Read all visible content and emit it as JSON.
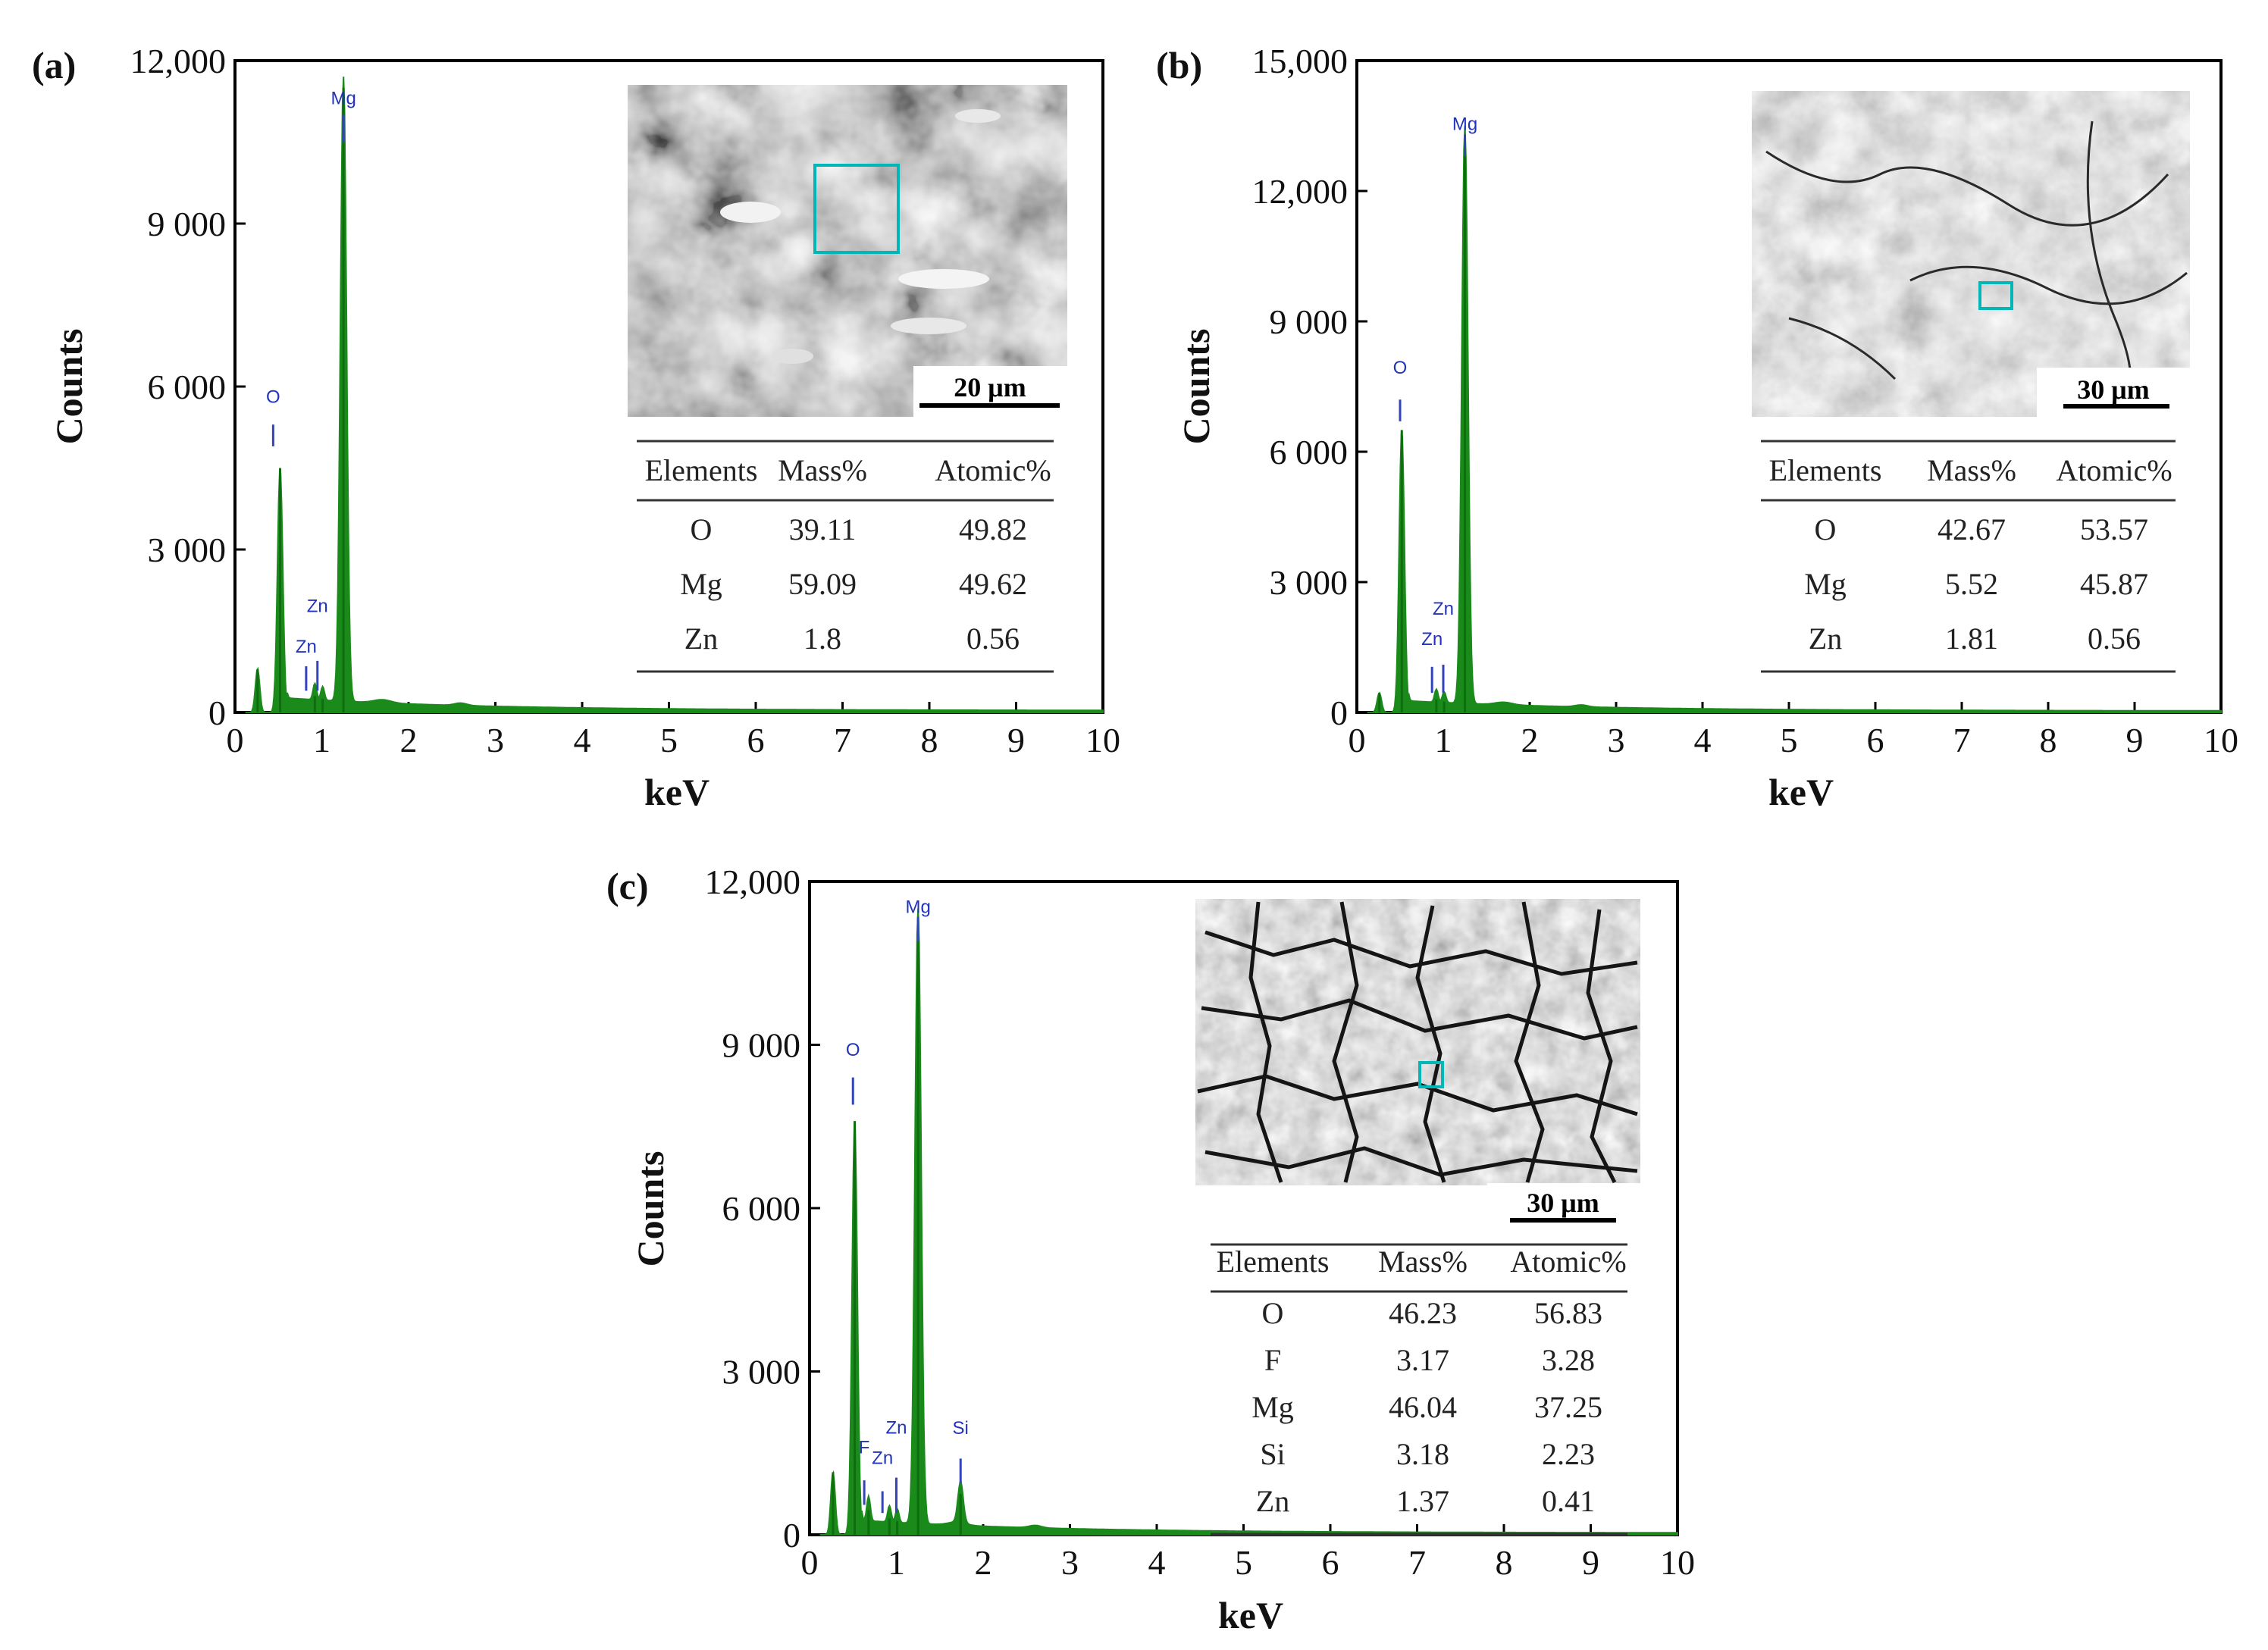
{
  "chart_data": [
    {
      "panel": "(a)",
      "type": "bar",
      "xlabel": "keV",
      "ylabel": "Counts",
      "xlim": [
        0,
        10
      ],
      "ylim": [
        0,
        12000
      ],
      "x_ticks": [
        "0",
        "1",
        "2",
        "3",
        "4",
        "5",
        "6",
        "7",
        "8",
        "9",
        "10"
      ],
      "y_ticks": [
        "0",
        "3 000",
        "6 000",
        "9 000",
        "12,000"
      ],
      "series_color": "#1a8a1a",
      "peaks": [
        {
          "label": "",
          "x": 0.26,
          "y": 800,
          "w": 0.025
        },
        {
          "label": "O",
          "x": 0.52,
          "y": 4500,
          "w": 0.03
        },
        {
          "label": "Zn",
          "x": 0.92,
          "y": 300,
          "w": 0.02
        },
        {
          "label": "Zn",
          "x": 1.01,
          "y": 250,
          "w": 0.02
        },
        {
          "label": "Mg",
          "x": 1.25,
          "y": 11500,
          "w": 0.035
        }
      ],
      "peak_labels": [
        {
          "text": "O",
          "x": 0.44,
          "y": 5700,
          "line_y": [
            4900,
            5300
          ]
        },
        {
          "text": "Zn",
          "x": 0.82,
          "y": 1100,
          "line_y": [
            400,
            850
          ]
        },
        {
          "text": "Zn",
          "x": 0.95,
          "y": 1850,
          "line_y": [
            400,
            950
          ]
        },
        {
          "text": "Mg",
          "x": 1.25,
          "y": 11200,
          "line_y": [
            10500,
            11000
          ]
        }
      ],
      "table": {
        "headers": [
          "Elements",
          "Mass%",
          "Atomic%"
        ],
        "rows": [
          [
            "O",
            "39.11",
            "49.82"
          ],
          [
            "Mg",
            "59.09",
            "49.62"
          ],
          [
            "Zn",
            "1.8",
            "0.56"
          ]
        ]
      },
      "micrograph": {
        "scale_bar": "20 μm",
        "tone": "dark"
      }
    },
    {
      "panel": "(b)",
      "type": "bar",
      "xlabel": "keV",
      "ylabel": "Counts",
      "xlim": [
        0,
        10
      ],
      "ylim": [
        0,
        15000
      ],
      "x_ticks": [
        "0",
        "1",
        "2",
        "3",
        "4",
        "5",
        "6",
        "7",
        "8",
        "9",
        "10"
      ],
      "y_ticks": [
        "0",
        "3 000",
        "6 000",
        "9 000",
        "12,000",
        "15,000"
      ],
      "series_color": "#1a8a1a",
      "peaks": [
        {
          "label": "",
          "x": 0.26,
          "y": 450,
          "w": 0.025
        },
        {
          "label": "O",
          "x": 0.52,
          "y": 6500,
          "w": 0.03
        },
        {
          "label": "Zn",
          "x": 0.92,
          "y": 300,
          "w": 0.02
        },
        {
          "label": "Zn",
          "x": 1.01,
          "y": 250,
          "w": 0.02
        },
        {
          "label": "Mg",
          "x": 1.25,
          "y": 13300,
          "w": 0.035
        }
      ],
      "peak_labels": [
        {
          "text": "O",
          "x": 0.5,
          "y": 7800,
          "line_y": [
            6700,
            7200
          ]
        },
        {
          "text": "Zn",
          "x": 0.87,
          "y": 1550,
          "line_y": [
            450,
            1050
          ]
        },
        {
          "text": "Zn",
          "x": 1.0,
          "y": 2250,
          "line_y": [
            450,
            1100
          ]
        },
        {
          "text": "Mg",
          "x": 1.25,
          "y": 13400,
          "line_y": [
            12800,
            13300
          ]
        }
      ],
      "table": {
        "headers": [
          "Elements",
          "Mass%",
          "Atomic%"
        ],
        "rows": [
          [
            "O",
            "42.67",
            "53.57"
          ],
          [
            "Mg",
            "5.52",
            "45.87"
          ],
          [
            "Zn",
            "1.81",
            "0.56"
          ]
        ]
      },
      "micrograph": {
        "scale_bar": "30 μm",
        "tone": "mid"
      }
    },
    {
      "panel": "(c)",
      "type": "bar",
      "xlabel": "keV",
      "ylabel": "Counts",
      "xlim": [
        0,
        10
      ],
      "ylim": [
        0,
        12000
      ],
      "x_ticks": [
        "0",
        "1",
        "2",
        "3",
        "4",
        "5",
        "6",
        "7",
        "8",
        "9",
        "10"
      ],
      "y_ticks": [
        "0",
        "3 000",
        "6 000",
        "9 000",
        "12,000"
      ],
      "series_color": "#1a8a1a",
      "peaks": [
        {
          "label": "",
          "x": 0.27,
          "y": 1150,
          "w": 0.025
        },
        {
          "label": "O",
          "x": 0.52,
          "y": 7600,
          "w": 0.03
        },
        {
          "label": "F",
          "x": 0.68,
          "y": 450,
          "w": 0.02
        },
        {
          "label": "Zn",
          "x": 0.92,
          "y": 300,
          "w": 0.02
        },
        {
          "label": "Zn",
          "x": 1.01,
          "y": 250,
          "w": 0.02
        },
        {
          "label": "Mg",
          "x": 1.25,
          "y": 11300,
          "w": 0.035
        },
        {
          "label": "Si",
          "x": 1.74,
          "y": 750,
          "w": 0.03
        }
      ],
      "peak_labels": [
        {
          "text": "O",
          "x": 0.5,
          "y": 8800,
          "line_y": [
            7900,
            8400
          ]
        },
        {
          "text": "F",
          "x": 0.63,
          "y": 1500,
          "line_y": [
            550,
            1000
          ]
        },
        {
          "text": "Zn",
          "x": 0.84,
          "y": 1300,
          "line_y": [
            400,
            800
          ]
        },
        {
          "text": "Zn",
          "x": 1.0,
          "y": 1860,
          "line_y": [
            400,
            1050
          ]
        },
        {
          "text": "Mg",
          "x": 1.25,
          "y": 11420,
          "line_y": [
            10900,
            11350
          ]
        },
        {
          "text": "Si",
          "x": 1.74,
          "y": 1850,
          "line_y": [
            950,
            1400
          ]
        }
      ],
      "table": {
        "headers": [
          "Elements",
          "Mass%",
          "Atomic%"
        ],
        "rows": [
          [
            "O",
            "46.23",
            "56.83"
          ],
          [
            "F",
            "3.17",
            "3.28"
          ],
          [
            "Mg",
            "46.04",
            "37.25"
          ],
          [
            "Si",
            "3.18",
            "2.23"
          ],
          [
            "Zn",
            "1.37",
            "0.41"
          ]
        ]
      },
      "micrograph": {
        "scale_bar": "30 μm",
        "tone": "cracked"
      }
    }
  ]
}
